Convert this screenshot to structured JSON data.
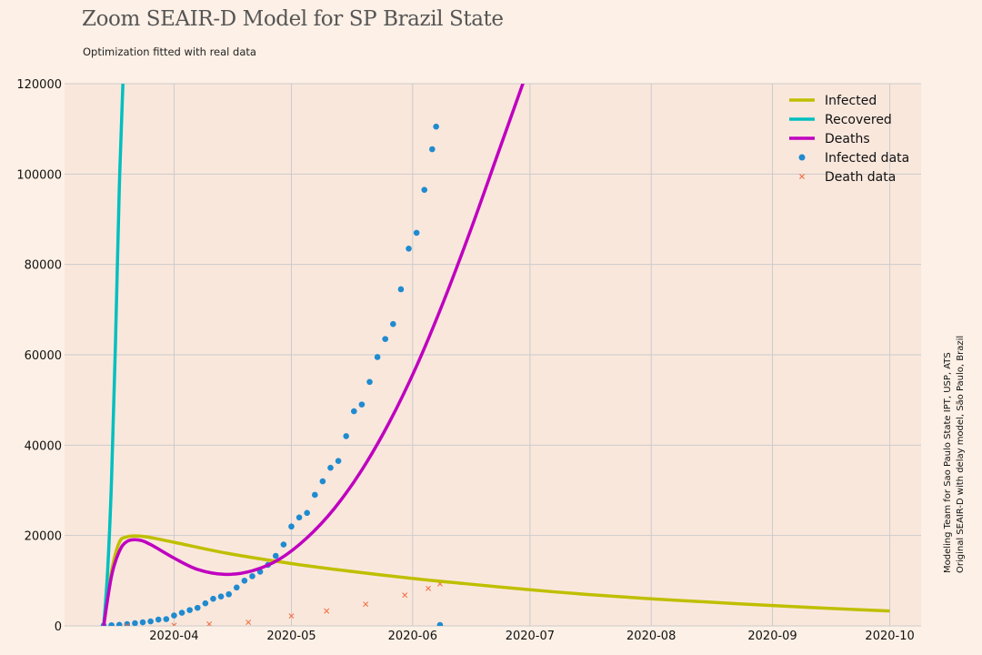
{
  "title": "Zoom SEAIR-D Model for SP Brazil State",
  "subtitle": "Optimization fitted with real data",
  "side_note": [
    "Modeling Team for Sao Paulo State IPT, USP, ATS",
    "Original SEAIR-D with delay model, São Paulo, Brazil"
  ],
  "colors": {
    "background": "#fdf0e6",
    "plot_background": "#fae7dc",
    "grid": "#cbcbcb",
    "infected": "#bfbf00",
    "recovered": "#00bfbf",
    "deaths": "#bf00bf",
    "infected_data": "#1f8bd0",
    "death_data": "#f26a3d"
  },
  "chart_data": {
    "type": "line",
    "title": "Zoom SEAIR-D Model for SP Brazil State",
    "subtitle": "Optimization fitted with real data",
    "xlabel": "",
    "ylabel": "",
    "x_type": "date",
    "xlim": [
      "2020-03-04",
      "2020-10-09"
    ],
    "ylim": [
      0,
      120000
    ],
    "x_ticks": [
      "2020-04-01",
      "2020-05-01",
      "2020-06-01",
      "2020-07-01",
      "2020-08-01",
      "2020-09-01",
      "2020-10-01"
    ],
    "x_tick_labels": [
      "2020-04",
      "2020-05",
      "2020-06",
      "2020-07",
      "2020-08",
      "2020-09",
      "2020-10"
    ],
    "y_ticks": [
      0,
      20000,
      40000,
      60000,
      80000,
      100000,
      120000
    ],
    "y_tick_labels": [
      "0",
      "20000",
      "40000",
      "60000",
      "80000",
      "100000",
      "120000"
    ],
    "grid": true,
    "legend_position": "top-right",
    "series": [
      {
        "name": "Infected",
        "kind": "line",
        "color": "#bfbf00",
        "points": [
          [
            "2020-03-14",
            0
          ],
          [
            "2020-03-16",
            12000
          ],
          [
            "2020-03-18",
            18500
          ],
          [
            "2020-03-20",
            19700
          ],
          [
            "2020-03-22",
            19900
          ],
          [
            "2020-03-25",
            19700
          ],
          [
            "2020-04-01",
            18500
          ],
          [
            "2020-04-15",
            16000
          ],
          [
            "2020-05-01",
            13800
          ],
          [
            "2020-05-15",
            12200
          ],
          [
            "2020-06-01",
            10500
          ],
          [
            "2020-06-15",
            9300
          ],
          [
            "2020-07-01",
            8000
          ],
          [
            "2020-07-15",
            7000
          ],
          [
            "2020-08-01",
            6000
          ],
          [
            "2020-08-15",
            5300
          ],
          [
            "2020-09-01",
            4500
          ],
          [
            "2020-09-15",
            3900
          ],
          [
            "2020-10-01",
            3300
          ]
        ]
      },
      {
        "name": "Recovered",
        "kind": "line",
        "color": "#00bfbf",
        "points": [
          [
            "2020-03-14",
            0
          ],
          [
            "2020-03-15",
            12000
          ],
          [
            "2020-03-16",
            32000
          ],
          [
            "2020-03-17",
            62000
          ],
          [
            "2020-03-18",
            97000
          ],
          [
            "2020-03-19",
            122000
          ]
        ]
      },
      {
        "name": "Deaths",
        "kind": "line",
        "color": "#bf00bf",
        "points": [
          [
            "2020-03-14",
            0
          ],
          [
            "2020-03-16",
            11000
          ],
          [
            "2020-03-18",
            16500
          ],
          [
            "2020-03-20",
            18700
          ],
          [
            "2020-03-23",
            19000
          ],
          [
            "2020-03-26",
            18000
          ],
          [
            "2020-04-01",
            15000
          ],
          [
            "2020-04-07",
            12500
          ],
          [
            "2020-04-14",
            11400
          ],
          [
            "2020-04-21",
            12200
          ],
          [
            "2020-04-28",
            14800
          ],
          [
            "2020-05-05",
            19500
          ],
          [
            "2020-05-12",
            26000
          ],
          [
            "2020-05-19",
            34500
          ],
          [
            "2020-05-26",
            45000
          ],
          [
            "2020-06-02",
            57500
          ],
          [
            "2020-06-09",
            72000
          ],
          [
            "2020-06-16",
            88000
          ],
          [
            "2020-06-23",
            105000
          ],
          [
            "2020-06-30",
            122000
          ]
        ]
      },
      {
        "name": "Infected data",
        "kind": "scatter",
        "marker": "circle",
        "color": "#1f8bd0",
        "points": [
          [
            "2020-03-14",
            100
          ],
          [
            "2020-03-16",
            150
          ],
          [
            "2020-03-18",
            240
          ],
          [
            "2020-03-20",
            400
          ],
          [
            "2020-03-22",
            600
          ],
          [
            "2020-03-24",
            800
          ],
          [
            "2020-03-26",
            1000
          ],
          [
            "2020-03-28",
            1400
          ],
          [
            "2020-03-30",
            1500
          ],
          [
            "2020-04-01",
            2300
          ],
          [
            "2020-04-03",
            2900
          ],
          [
            "2020-04-05",
            3500
          ],
          [
            "2020-04-07",
            4000
          ],
          [
            "2020-04-09",
            5000
          ],
          [
            "2020-04-11",
            6000
          ],
          [
            "2020-04-13",
            6500
          ],
          [
            "2020-04-15",
            7000
          ],
          [
            "2020-04-17",
            8500
          ],
          [
            "2020-04-19",
            10000
          ],
          [
            "2020-04-21",
            11000
          ],
          [
            "2020-04-23",
            12000
          ],
          [
            "2020-04-25",
            13500
          ],
          [
            "2020-04-27",
            15500
          ],
          [
            "2020-04-29",
            18000
          ],
          [
            "2020-05-01",
            22000
          ],
          [
            "2020-05-03",
            24000
          ],
          [
            "2020-05-05",
            25000
          ],
          [
            "2020-05-07",
            29000
          ],
          [
            "2020-05-09",
            32000
          ],
          [
            "2020-05-11",
            35000
          ],
          [
            "2020-05-13",
            36500
          ],
          [
            "2020-05-15",
            42000
          ],
          [
            "2020-05-17",
            47500
          ],
          [
            "2020-05-19",
            49000
          ],
          [
            "2020-05-21",
            54000
          ],
          [
            "2020-05-23",
            59500
          ],
          [
            "2020-05-25",
            63500
          ],
          [
            "2020-05-27",
            66800
          ],
          [
            "2020-05-29",
            74500
          ],
          [
            "2020-05-31",
            83500
          ],
          [
            "2020-06-02",
            87000
          ],
          [
            "2020-06-04",
            96500
          ],
          [
            "2020-06-06",
            105500
          ],
          [
            "2020-06-07",
            110500
          ],
          [
            "2020-06-08",
            200
          ]
        ]
      },
      {
        "name": "Death data",
        "kind": "scatter",
        "marker": "x",
        "color": "#f26a3d",
        "points": [
          [
            "2020-03-20",
            0
          ],
          [
            "2020-04-01",
            100
          ],
          [
            "2020-04-10",
            400
          ],
          [
            "2020-04-20",
            800
          ],
          [
            "2020-05-01",
            2200
          ],
          [
            "2020-05-10",
            3300
          ],
          [
            "2020-05-20",
            4800
          ],
          [
            "2020-05-30",
            6800
          ],
          [
            "2020-06-05",
            8300
          ],
          [
            "2020-06-08",
            9300
          ]
        ]
      }
    ]
  }
}
